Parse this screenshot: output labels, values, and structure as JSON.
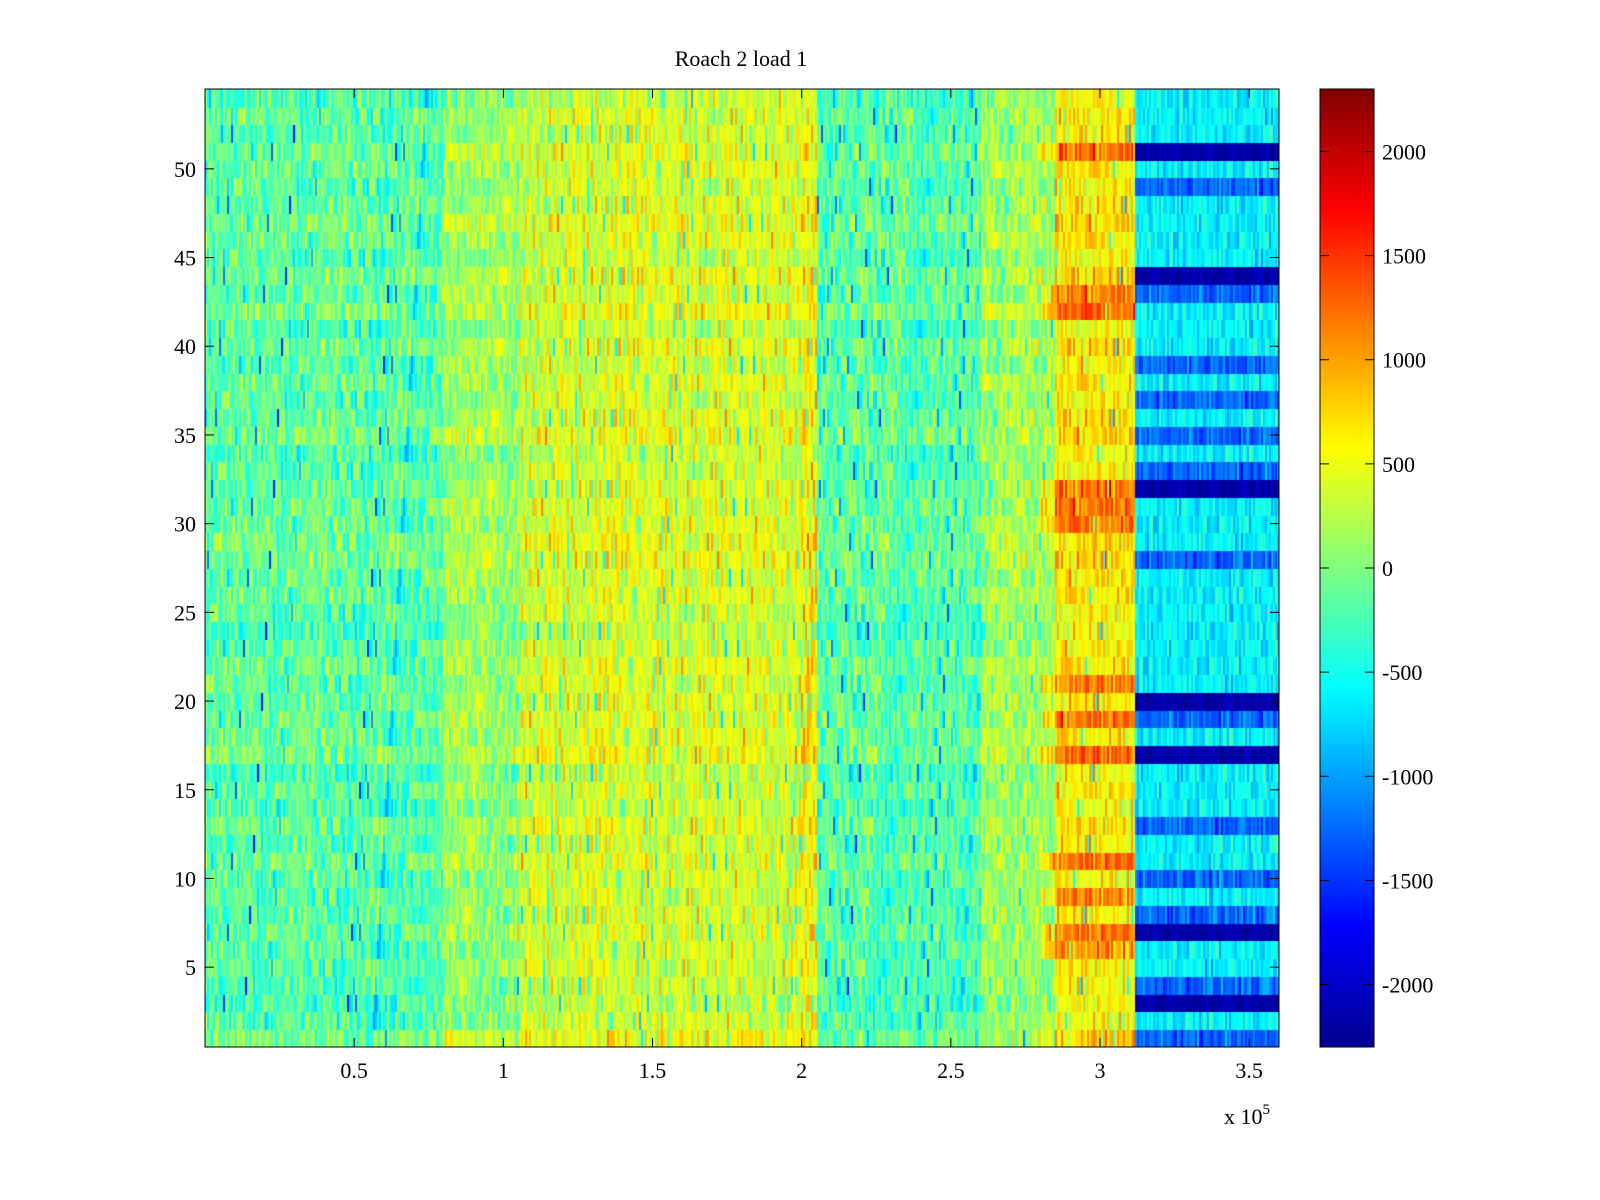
{
  "chart_data": {
    "type": "heatmap",
    "title": "Roach 2 load 1",
    "xlabel": "",
    "ylabel": "",
    "x_multiplier_label": "x 10",
    "x_multiplier_exponent": "5",
    "xlim": [
      0,
      360000
    ],
    "ylim": [
      0.5,
      54.5
    ],
    "x_ticks": [
      50000,
      100000,
      150000,
      200000,
      250000,
      300000,
      350000
    ],
    "x_tick_labels": [
      "0.5",
      "1",
      "1.5",
      "2",
      "2.5",
      "3",
      "3.5"
    ],
    "y_ticks": [
      5,
      10,
      15,
      20,
      25,
      30,
      35,
      40,
      45,
      50
    ],
    "y_tick_labels": [
      "5",
      "10",
      "15",
      "20",
      "25",
      "30",
      "35",
      "40",
      "45",
      "50"
    ],
    "rows": 54,
    "colormap": "jet",
    "clim": [
      -2300,
      2300
    ],
    "colorbar": {
      "ticks": [
        2000,
        1500,
        1000,
        500,
        0,
        -500,
        -1000,
        -1500,
        -2000
      ],
      "tick_labels": [
        "2000",
        "1500",
        "1000",
        "500",
        "0",
        "-500",
        "-1000",
        "-1500",
        "-2000"
      ]
    },
    "column_profile_mean": [
      {
        "x_start": 0,
        "x_end": 80000,
        "mean": -150
      },
      {
        "x_start": 80000,
        "x_end": 105000,
        "mean": 150
      },
      {
        "x_start": 105000,
        "x_end": 200000,
        "mean": 400
      },
      {
        "x_start": 200000,
        "x_end": 205000,
        "mean": 600
      },
      {
        "x_start": 205000,
        "x_end": 260000,
        "mean": -200
      },
      {
        "x_start": 260000,
        "x_end": 285000,
        "mean": 150
      },
      {
        "x_start": 285000,
        "x_end": 312000,
        "mean": 650
      },
      {
        "x_start": 312000,
        "x_end": 360000,
        "mean": -500
      }
    ],
    "saturated_rows_after_x": 312000,
    "dark_blue_rows": [
      3,
      7,
      17,
      20,
      32,
      44,
      51
    ],
    "blue_rows": [
      1,
      4,
      8,
      10,
      13,
      19,
      28,
      33,
      35,
      37,
      39,
      43,
      49
    ],
    "hot_rows_near_x_300000": [
      6,
      7,
      9,
      11,
      17,
      19,
      21,
      30,
      31,
      32,
      42,
      43,
      51
    ]
  },
  "colors": {
    "background": "#ffffff",
    "axis": "#000000"
  }
}
